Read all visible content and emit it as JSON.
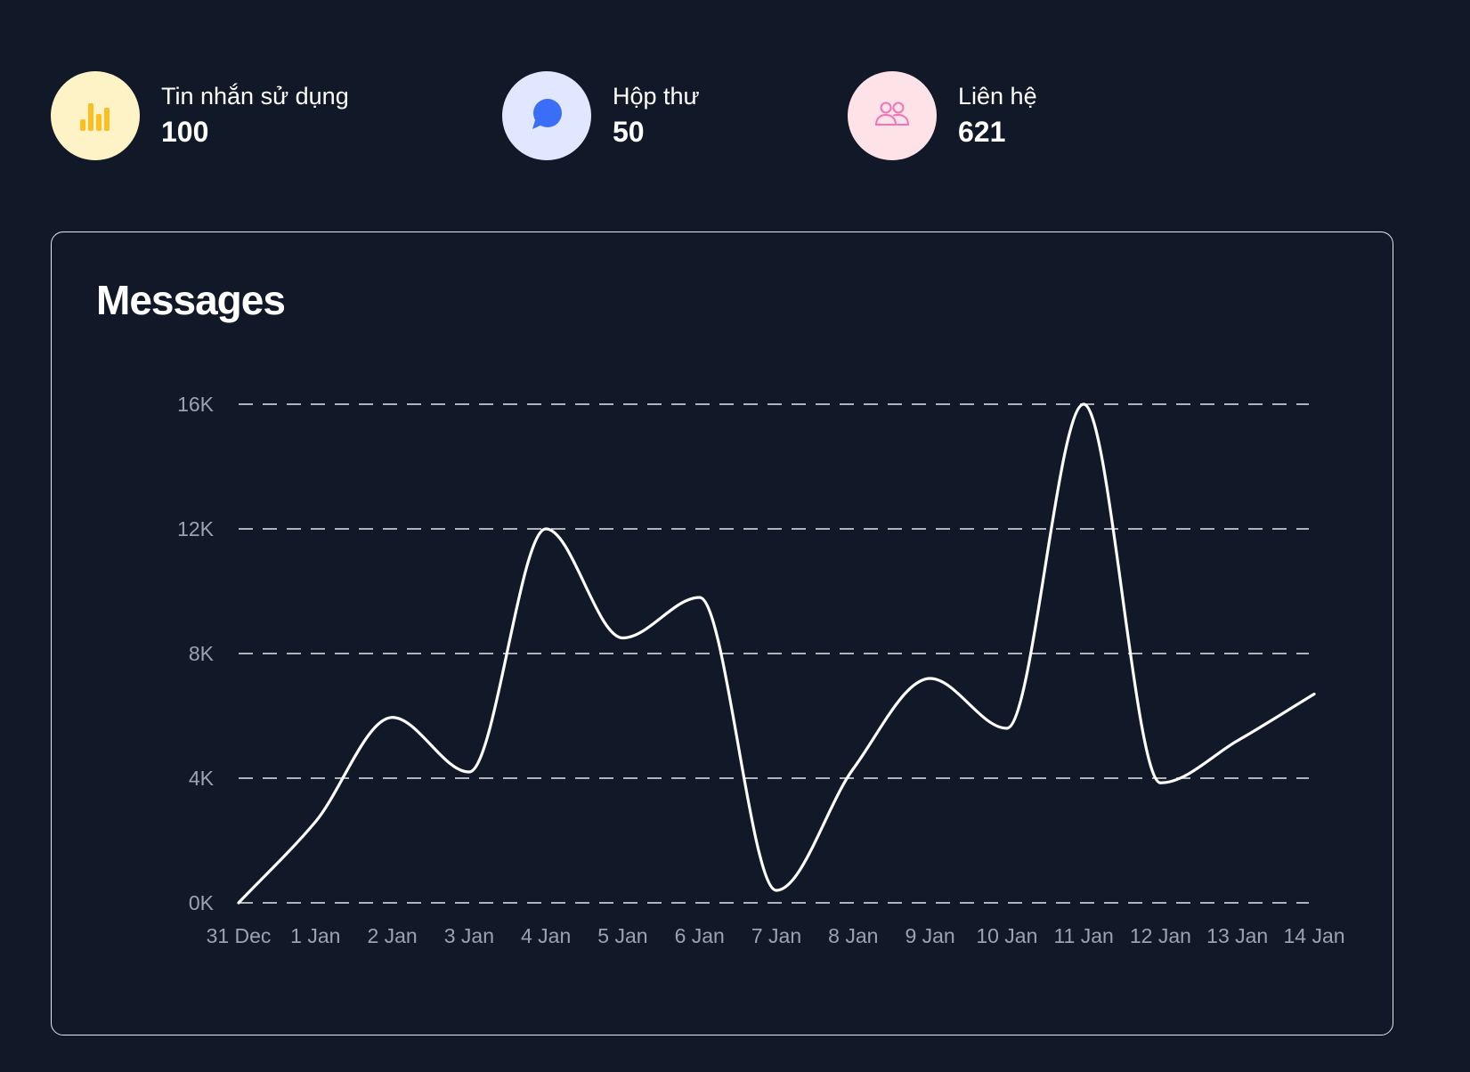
{
  "stats": [
    {
      "label": "Tin nhắn sử dụng",
      "value": "100",
      "icon": "bar-chart-icon",
      "icon_bg": "#fef3c7",
      "icon_color": "#fbbf24"
    },
    {
      "label": "Hộp thư",
      "value": "50",
      "icon": "chat-bubble-icon",
      "icon_bg": "#e0e7ff",
      "icon_color": "#3b6ef6"
    },
    {
      "label": "Liên hệ",
      "value": "621",
      "icon": "users-icon",
      "icon_bg": "#fde2e8",
      "icon_color": "#f472b6"
    }
  ],
  "chart_data": {
    "type": "line",
    "title": "Messages",
    "xlabel": "",
    "ylabel": "",
    "categories": [
      "31 Dec",
      "1 Jan",
      "2 Jan",
      "3 Jan",
      "4 Jan",
      "5 Jan",
      "6 Jan",
      "7 Jan",
      "8 Jan",
      "9 Jan",
      "10 Jan",
      "11 Jan",
      "12 Jan",
      "13 Jan",
      "14 Jan"
    ],
    "series": [
      {
        "name": "",
        "values": [
          0,
          2600,
          5950,
          4200,
          12000,
          8500,
          9800,
          400,
          4300,
          7200,
          5600,
          16000,
          3850,
          5200,
          6700
        ]
      }
    ],
    "yticks": [
      "0K",
      "4K",
      "8K",
      "12K",
      "16K"
    ],
    "ylim": [
      0,
      16000
    ],
    "grid": true,
    "grid_style": "dashed",
    "line_color": "#ffffff",
    "grid_color": "#e5e7eb",
    "tick_color": "#9ca3af"
  }
}
